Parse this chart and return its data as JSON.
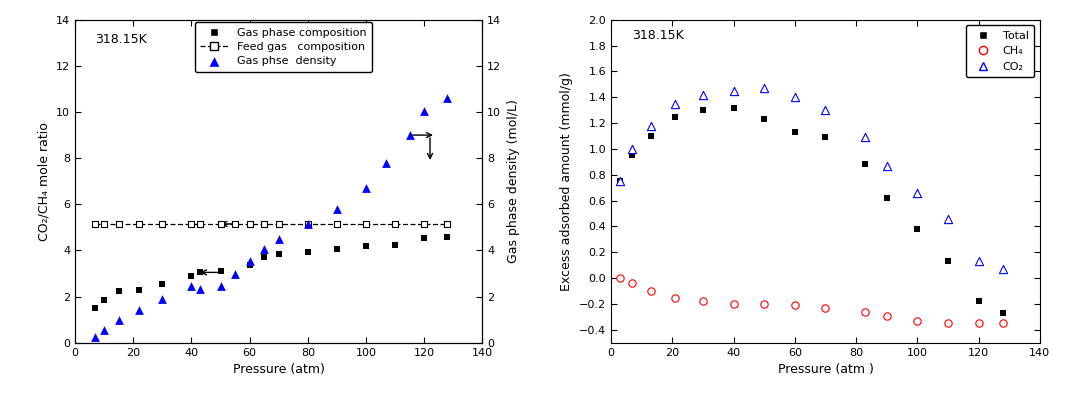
{
  "left_plot": {
    "title": "318.15K",
    "xlabel": "Pressure (atm)",
    "ylabel_left": "CO₂/CH₄ mole ratio",
    "ylabel_right": "Gas phase density (mol/L)",
    "xlim": [
      0,
      140
    ],
    "ylim_left": [
      0,
      14
    ],
    "ylim_right": [
      0,
      14
    ],
    "yticks_left": [
      0,
      2,
      4,
      6,
      8,
      10,
      12,
      14
    ],
    "yticks_right": [
      0,
      2,
      4,
      6,
      8,
      10,
      12,
      14
    ],
    "xticks": [
      0,
      20,
      40,
      60,
      80,
      100,
      120,
      140
    ],
    "gas_phase_comp_x": [
      7,
      10,
      15,
      22,
      30,
      40,
      43,
      50,
      60,
      65,
      70,
      80,
      90,
      100,
      110,
      120,
      128
    ],
    "gas_phase_comp_y": [
      1.5,
      1.85,
      2.25,
      2.3,
      2.55,
      2.9,
      3.05,
      3.1,
      3.35,
      3.7,
      3.85,
      3.95,
      4.05,
      4.2,
      4.25,
      4.55,
      4.6
    ],
    "feed_gas_comp_x": [
      7,
      10,
      15,
      22,
      30,
      40,
      43,
      50,
      55,
      60,
      65,
      70,
      80,
      90,
      100,
      110,
      120,
      128
    ],
    "feed_gas_comp_y": [
      5.15,
      5.15,
      5.15,
      5.15,
      5.15,
      5.15,
      5.15,
      5.15,
      5.15,
      5.15,
      5.15,
      5.15,
      5.15,
      5.15,
      5.15,
      5.15,
      5.15,
      5.15
    ],
    "gas_density_x": [
      7,
      10,
      15,
      22,
      30,
      40,
      43,
      50,
      55,
      60,
      65,
      70,
      80,
      90,
      100,
      107,
      115,
      120,
      128
    ],
    "gas_density_y": [
      0.25,
      0.55,
      1.0,
      1.4,
      1.9,
      2.45,
      2.35,
      2.45,
      3.0,
      3.55,
      4.05,
      4.5,
      5.15,
      5.8,
      6.7,
      7.8,
      9.0,
      10.05,
      10.6
    ]
  },
  "right_plot": {
    "title": "318.15K",
    "xlabel": "Pressure (atm )",
    "ylabel": "Excess adsorbed amount (mmol/g)",
    "xlim": [
      0,
      140
    ],
    "ylim": [
      -0.5,
      2.0
    ],
    "yticks": [
      -0.4,
      -0.2,
      0.0,
      0.2,
      0.4,
      0.6,
      0.8,
      1.0,
      1.2,
      1.4,
      1.6,
      1.8,
      2.0
    ],
    "xticks": [
      0,
      20,
      40,
      60,
      80,
      100,
      120,
      140
    ],
    "total_x": [
      3,
      7,
      13,
      21,
      30,
      40,
      50,
      60,
      70,
      83,
      90,
      100,
      110,
      120,
      128
    ],
    "total_y": [
      0.75,
      0.95,
      1.1,
      1.25,
      1.3,
      1.32,
      1.23,
      1.13,
      1.09,
      0.88,
      0.62,
      0.38,
      0.13,
      -0.18,
      -0.27
    ],
    "ch4_x": [
      3,
      7,
      13,
      21,
      30,
      40,
      50,
      60,
      70,
      83,
      90,
      100,
      110,
      120,
      128
    ],
    "ch4_y": [
      0.0,
      -0.04,
      -0.1,
      -0.15,
      -0.18,
      -0.2,
      -0.2,
      -0.21,
      -0.23,
      -0.26,
      -0.29,
      -0.33,
      -0.35,
      -0.35,
      -0.35
    ],
    "co2_x": [
      3,
      7,
      13,
      21,
      30,
      40,
      50,
      60,
      70,
      83,
      90,
      100,
      110,
      120,
      128
    ],
    "co2_y": [
      0.75,
      1.0,
      1.18,
      1.35,
      1.42,
      1.45,
      1.47,
      1.4,
      1.3,
      1.09,
      0.87,
      0.66,
      0.46,
      0.13,
      0.07
    ]
  }
}
